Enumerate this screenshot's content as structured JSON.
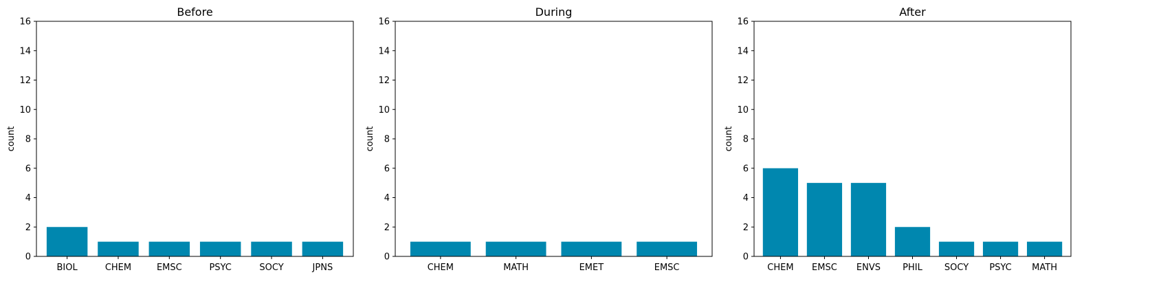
{
  "figure": {
    "bar_color": "#0087AF",
    "axis_color": "#000000"
  },
  "chart_data": [
    {
      "type": "bar",
      "title": "Before",
      "xlabel": "",
      "ylabel": "count",
      "ylim": [
        0,
        16
      ],
      "yticks": [
        0,
        2,
        4,
        6,
        8,
        10,
        12,
        14,
        16
      ],
      "categories": [
        "BIOL",
        "CHEM",
        "EMSC",
        "PSYC",
        "SOCY",
        "JPNS"
      ],
      "values": [
        2,
        1,
        1,
        1,
        1,
        1
      ],
      "grid": false
    },
    {
      "type": "bar",
      "title": "During",
      "xlabel": "",
      "ylabel": "count",
      "ylim": [
        0,
        16
      ],
      "yticks": [
        0,
        2,
        4,
        6,
        8,
        10,
        12,
        14,
        16
      ],
      "categories": [
        "CHEM",
        "MATH",
        "EMET",
        "EMSC"
      ],
      "values": [
        1,
        1,
        1,
        1
      ],
      "grid": false
    },
    {
      "type": "bar",
      "title": "After",
      "xlabel": "",
      "ylabel": "count",
      "ylim": [
        0,
        16
      ],
      "yticks": [
        0,
        2,
        4,
        6,
        8,
        10,
        12,
        14,
        16
      ],
      "categories": [
        "CHEM",
        "EMSC",
        "ENVS",
        "PHIL",
        "SOCY",
        "PSYC",
        "MATH"
      ],
      "values": [
        6,
        5,
        5,
        2,
        1,
        1,
        1
      ],
      "grid": false
    }
  ]
}
